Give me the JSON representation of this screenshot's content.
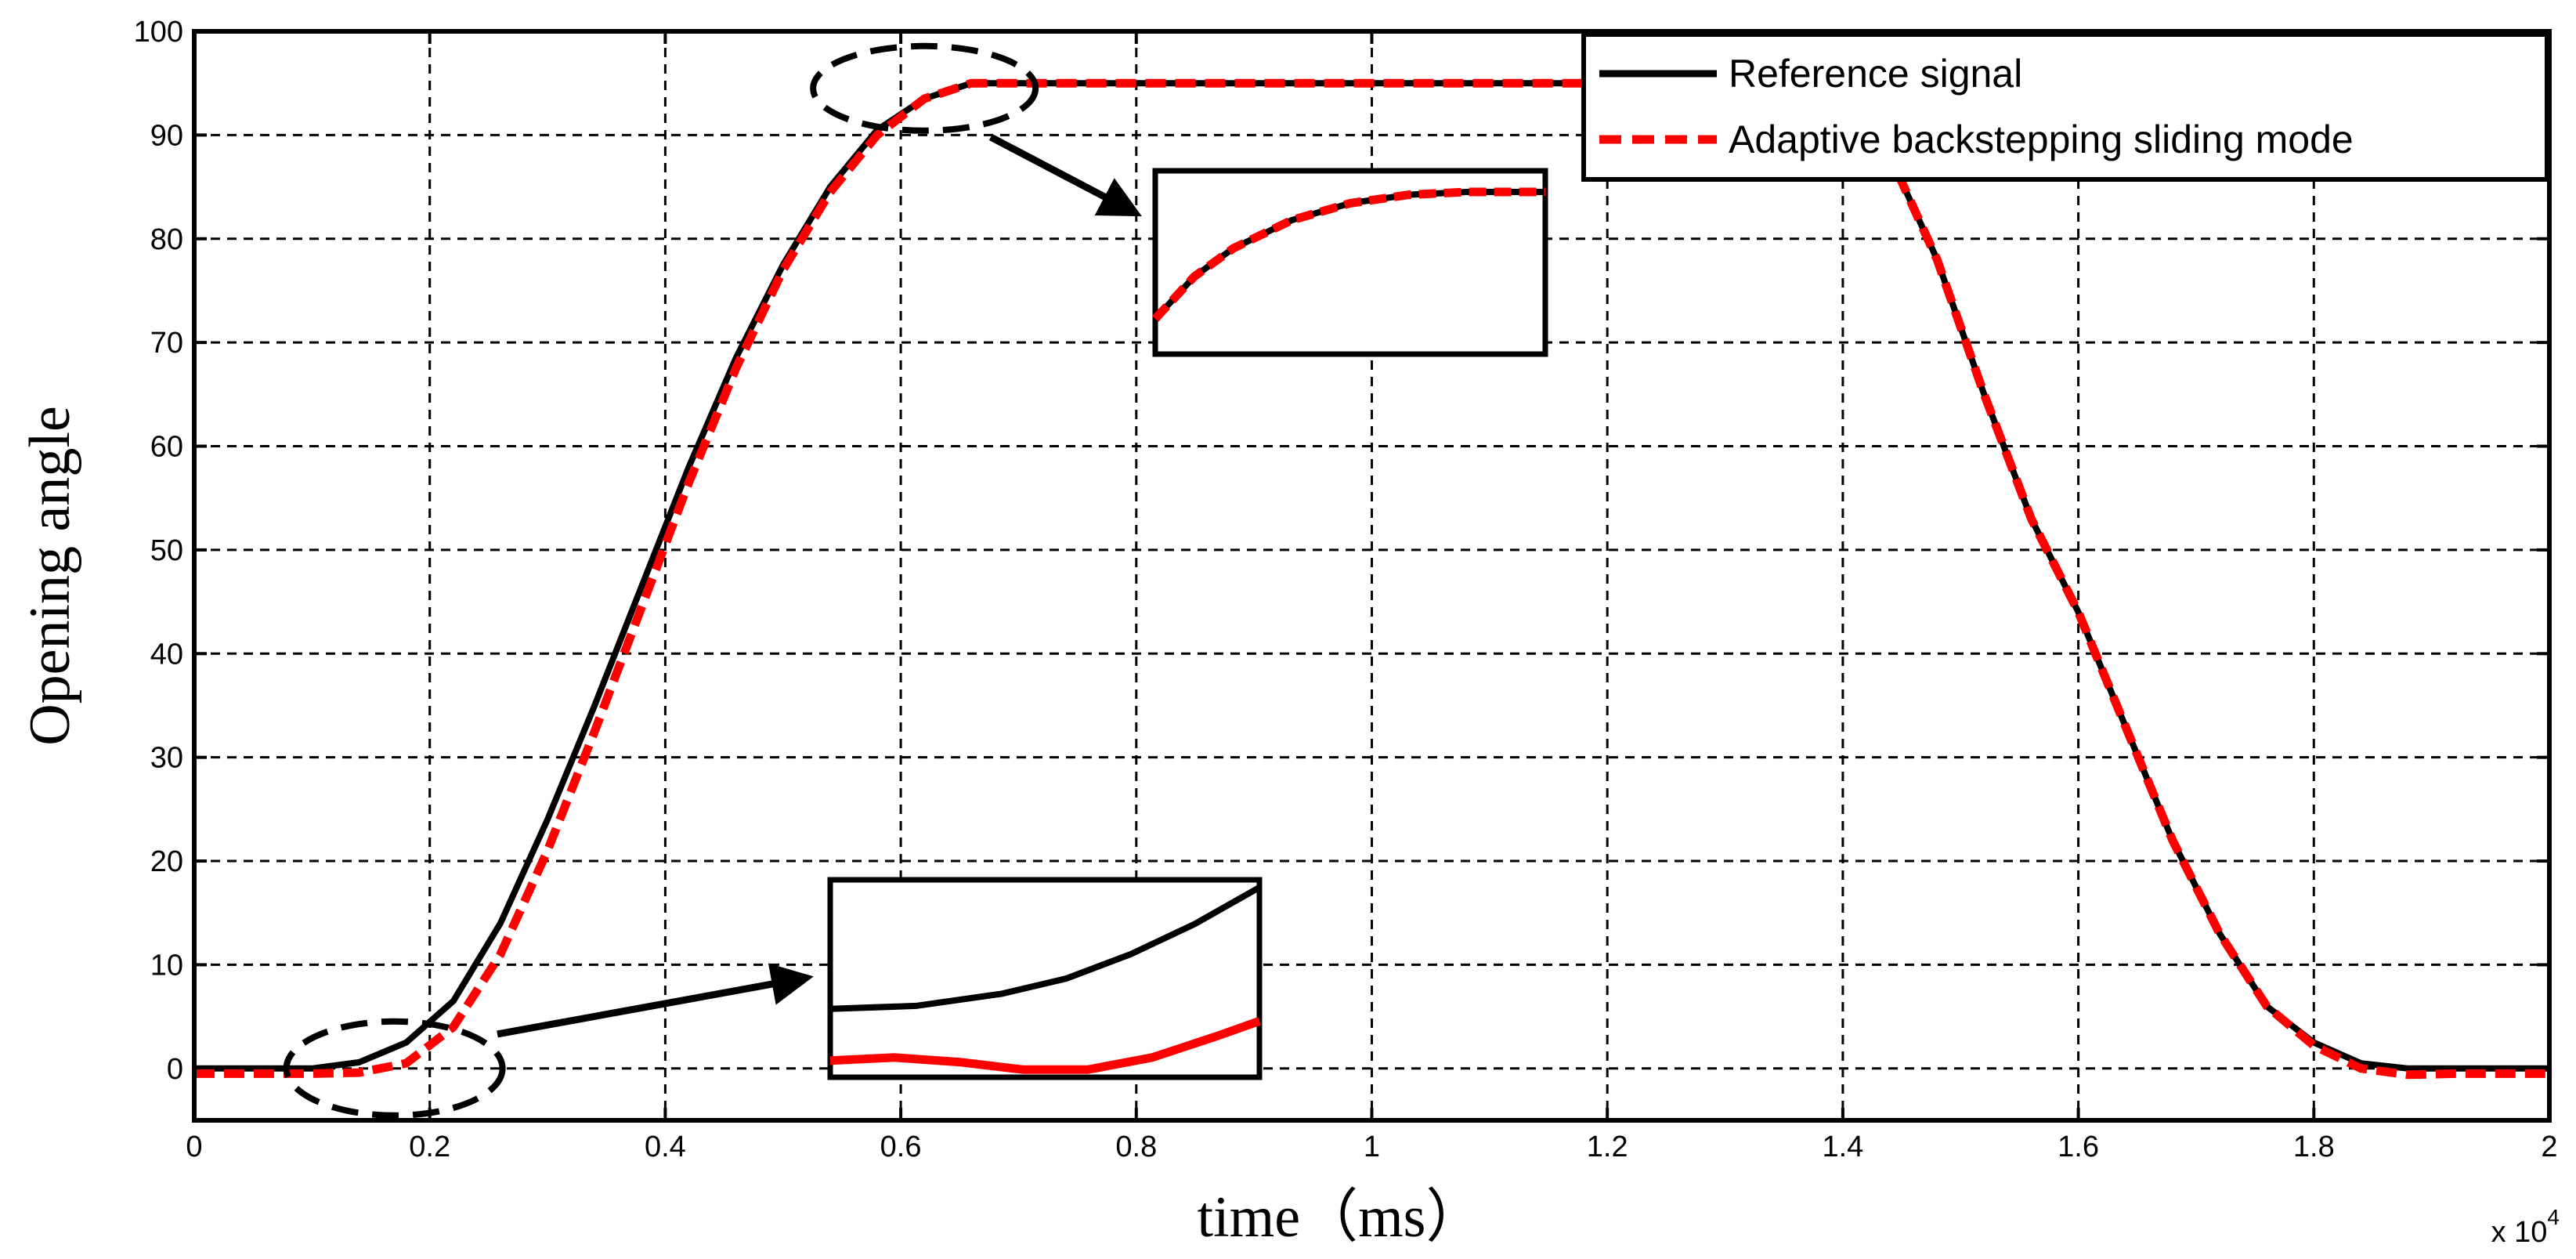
{
  "chart_data": {
    "type": "line",
    "title": "",
    "xlabel": "time（ms）",
    "ylabel": "Opening angle",
    "x_multiplier_label": "x 10",
    "x_multiplier_exponent": "4",
    "xlim": [
      0,
      2
    ],
    "ylim": [
      -5,
      100
    ],
    "xticks": [
      0,
      0.2,
      0.4,
      0.6,
      0.8,
      1,
      1.2,
      1.4,
      1.6,
      1.8,
      2
    ],
    "xtick_labels": [
      "0",
      "0.2",
      "0.4",
      "0.6",
      "0.8",
      "1",
      "1.2",
      "1.4",
      "1.6",
      "1.8",
      "2"
    ],
    "yticks": [
      0,
      10,
      20,
      30,
      40,
      50,
      60,
      70,
      80,
      90,
      100
    ],
    "ytick_labels": [
      "0",
      "10",
      "20",
      "30",
      "40",
      "50",
      "60",
      "70",
      "80",
      "90",
      "100"
    ],
    "grid": true,
    "legend_position": "top-right",
    "series": [
      {
        "name": "Reference signal",
        "color": "#000000",
        "style": "solid",
        "x": [
          0,
          0.1,
          0.14,
          0.18,
          0.22,
          0.26,
          0.3,
          0.34,
          0.38,
          0.42,
          0.46,
          0.5,
          0.54,
          0.58,
          0.62,
          0.66,
          0.7,
          0.8,
          1.0,
          1.2,
          1.4,
          1.44,
          1.48,
          1.52,
          1.56,
          1.6,
          1.64,
          1.68,
          1.72,
          1.76,
          1.8,
          1.84,
          1.88,
          1.92,
          2.0
        ],
        "y": [
          0,
          0,
          0.6,
          2.5,
          6.5,
          14,
          24,
          35,
          46.5,
          58,
          68.5,
          77.5,
          85,
          90.5,
          93.5,
          95,
          95,
          95,
          95,
          95,
          95,
          88,
          78,
          65,
          53,
          44,
          33,
          22,
          13,
          6,
          2.5,
          0.5,
          0,
          0,
          0
        ]
      },
      {
        "name": "Adaptive backstepping sliding mode",
        "color": "#ff0000",
        "style": "dashed",
        "x": [
          0,
          0.1,
          0.14,
          0.18,
          0.22,
          0.26,
          0.3,
          0.34,
          0.38,
          0.42,
          0.46,
          0.5,
          0.54,
          0.58,
          0.62,
          0.66,
          0.7,
          0.8,
          1.0,
          1.2,
          1.4,
          1.44,
          1.48,
          1.52,
          1.56,
          1.6,
          1.64,
          1.68,
          1.72,
          1.76,
          1.8,
          1.84,
          1.88,
          1.92,
          2.0
        ],
        "y": [
          -0.5,
          -0.5,
          -0.4,
          0.5,
          4,
          11,
          21,
          32.5,
          44.5,
          56.5,
          67.5,
          77,
          84.5,
          90,
          93.5,
          95,
          95,
          95,
          95,
          95,
          95,
          88,
          78,
          65,
          53,
          44,
          33,
          22,
          13,
          6,
          2.2,
          0,
          -0.6,
          -0.5,
          -0.5
        ]
      }
    ],
    "annotations": [
      {
        "type": "ellipse",
        "center": [
          0.17,
          0
        ],
        "target_inset": "inset-lower",
        "description_x_range": [
          0.08,
          0.26
        ]
      },
      {
        "type": "ellipse",
        "center": [
          0.62,
          94.5
        ],
        "target_inset": "inset-upper",
        "description_x_range": [
          0.52,
          0.72
        ]
      }
    ],
    "insets": [
      {
        "id": "inset-lower",
        "series": [
          {
            "name": "Reference signal",
            "x": [
              0,
              0.2,
              0.4,
              0.55,
              0.7,
              0.85,
              1.0
            ],
            "y": [
              0.2,
              0.22,
              0.3,
              0.4,
              0.56,
              0.76,
              1.0
            ]
          },
          {
            "name": "Adaptive backstepping sliding mode",
            "x": [
              0,
              0.15,
              0.3,
              0.45,
              0.6,
              0.75,
              0.9,
              1.0
            ],
            "y": [
              -0.14,
              -0.12,
              -0.15,
              -0.2,
              -0.2,
              -0.12,
              0.02,
              0.12
            ]
          }
        ]
      },
      {
        "id": "inset-upper",
        "series": [
          {
            "name": "Reference signal",
            "x": [
              0,
              0.1,
              0.2,
              0.35,
              0.5,
              0.65,
              0.8,
              1.0
            ],
            "y": [
              0.0,
              0.3,
              0.5,
              0.7,
              0.82,
              0.88,
              0.9,
              0.9
            ]
          },
          {
            "name": "Adaptive backstepping sliding mode",
            "x": [
              0,
              0.1,
              0.2,
              0.35,
              0.5,
              0.65,
              0.8,
              1.0
            ],
            "y": [
              0.0,
              0.3,
              0.5,
              0.7,
              0.82,
              0.88,
              0.9,
              0.9
            ]
          }
        ]
      }
    ]
  }
}
